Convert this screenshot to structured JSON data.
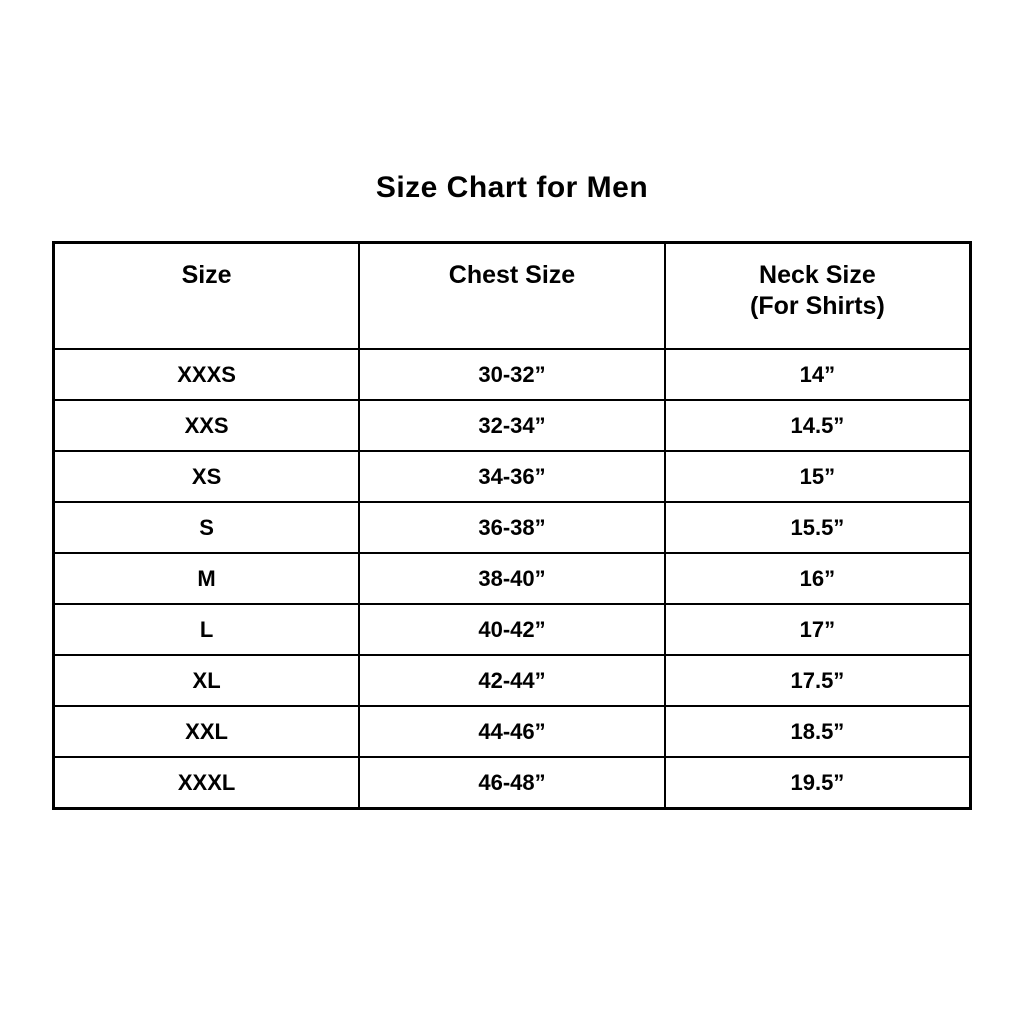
{
  "page": {
    "title": "Size Chart for Men"
  },
  "chart_data": {
    "type": "table",
    "title": "Size Chart for Men",
    "columns": [
      "Size",
      "Chest Size",
      "Neck Size (For Shirts)"
    ],
    "header": {
      "size": "Size",
      "chest": "Chest Size",
      "neck_line1": "Neck Size",
      "neck_line2": "(For Shirts)"
    },
    "rows": [
      {
        "size": "XXXS",
        "chest": "30-32”",
        "neck": "14”"
      },
      {
        "size": "XXS",
        "chest": "32-34”",
        "neck": "14.5”"
      },
      {
        "size": "XS",
        "chest": "34-36”",
        "neck": "15”"
      },
      {
        "size": "S",
        "chest": "36-38”",
        "neck": "15.5”"
      },
      {
        "size": "M",
        "chest": "38-40”",
        "neck": "16”"
      },
      {
        "size": "L",
        "chest": "40-42”",
        "neck": "17”"
      },
      {
        "size": "XL",
        "chest": "42-44”",
        "neck": "17.5”"
      },
      {
        "size": "XXL",
        "chest": "44-46”",
        "neck": "18.5”"
      },
      {
        "size": "XXXL",
        "chest": "46-48”",
        "neck": "19.5”"
      }
    ],
    "layout": {
      "text_color": "#000000",
      "border_color": "#000000",
      "background_color": "#ffffff",
      "grid": true
    }
  }
}
